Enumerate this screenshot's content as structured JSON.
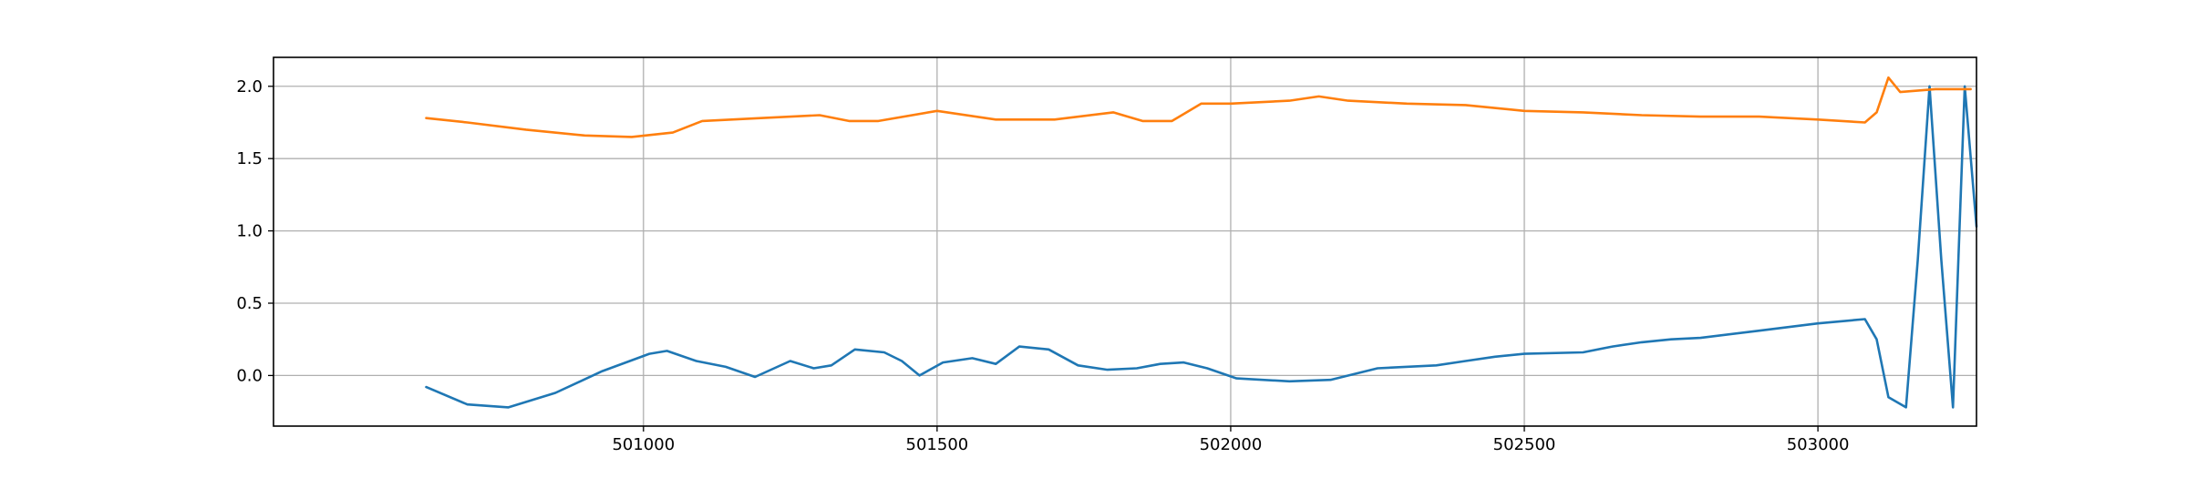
{
  "chart_data": {
    "type": "line",
    "title": "",
    "xlabel": "",
    "ylabel": "",
    "xlim": [
      500370,
      503270
    ],
    "ylim": [
      -0.35,
      2.2
    ],
    "grid": true,
    "xticks": [
      501000,
      501500,
      502000,
      502500,
      503000
    ],
    "yticks": [
      0.0,
      0.5,
      1.0,
      1.5,
      2.0
    ],
    "xtick_labels": [
      "501000",
      "501500",
      "502000",
      "502500",
      "503000"
    ],
    "ytick_labels": [
      "0.0",
      "0.5",
      "1.0",
      "1.5",
      "2.0"
    ],
    "series": [
      {
        "color": "#1f77b4",
        "x": [
          500630,
          500700,
          500770,
          500850,
          500930,
          501010,
          501040,
          501090,
          501140,
          501190,
          501250,
          501290,
          501320,
          501360,
          501410,
          501440,
          501470,
          501510,
          501560,
          501600,
          501640,
          501690,
          501740,
          501790,
          501840,
          501880,
          501920,
          501960,
          502010,
          502100,
          502170,
          502250,
          502350,
          502400,
          502450,
          502500,
          502600,
          502650,
          502700,
          502750,
          502800,
          502900,
          503000,
          503080,
          503100,
          503120,
          503150,
          503170,
          503190,
          503210,
          503230,
          503250,
          503270
        ],
        "y": [
          -0.08,
          -0.2,
          -0.22,
          -0.12,
          0.03,
          0.15,
          0.17,
          0.1,
          0.06,
          -0.01,
          0.1,
          0.05,
          0.07,
          0.18,
          0.16,
          0.1,
          0.0,
          0.09,
          0.12,
          0.08,
          0.2,
          0.18,
          0.07,
          0.04,
          0.05,
          0.08,
          0.09,
          0.05,
          -0.02,
          -0.04,
          -0.03,
          0.05,
          0.07,
          0.1,
          0.13,
          0.15,
          0.16,
          0.2,
          0.23,
          0.25,
          0.26,
          0.31,
          0.36,
          0.39,
          0.25,
          -0.15,
          -0.22,
          0.8,
          2.0,
          0.8,
          -0.22,
          2.0,
          1.03
        ]
      },
      {
        "color": "#ff7f0e",
        "x": [
          500630,
          500700,
          500800,
          500900,
          500980,
          501050,
          501100,
          501200,
          501300,
          501350,
          501400,
          501500,
          501600,
          501700,
          501800,
          501850,
          501900,
          501950,
          502000,
          502100,
          502150,
          502200,
          502300,
          502400,
          502500,
          502600,
          502700,
          502800,
          502900,
          503000,
          503080,
          503100,
          503120,
          503140,
          503200,
          503260
        ],
        "y": [
          1.78,
          1.75,
          1.7,
          1.66,
          1.65,
          1.68,
          1.76,
          1.78,
          1.8,
          1.76,
          1.76,
          1.83,
          1.77,
          1.77,
          1.82,
          1.76,
          1.76,
          1.88,
          1.88,
          1.9,
          1.93,
          1.9,
          1.88,
          1.87,
          1.83,
          1.82,
          1.8,
          1.79,
          1.79,
          1.77,
          1.75,
          1.82,
          2.06,
          1.96,
          1.98,
          1.98
        ]
      }
    ]
  }
}
